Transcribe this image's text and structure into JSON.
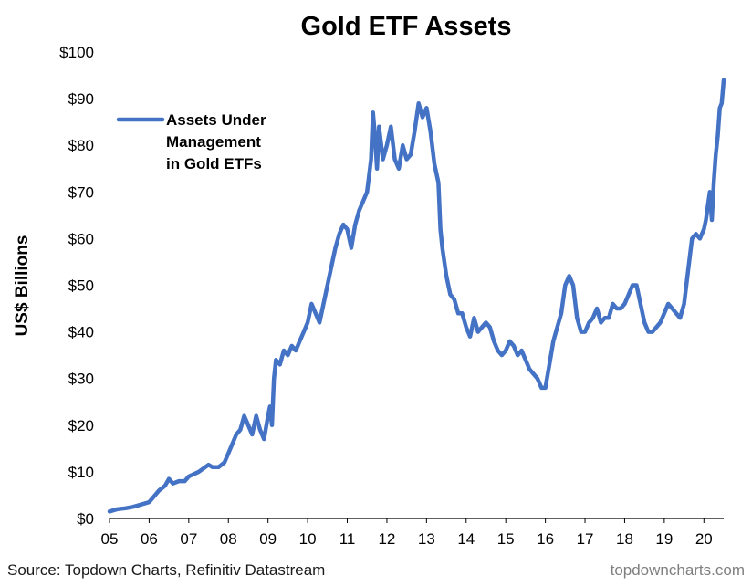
{
  "chart_data": {
    "type": "line",
    "title": "Gold ETF Assets",
    "ylabel": "US$ Billions",
    "xlabel": "",
    "xlim": [
      2005,
      2020.5
    ],
    "ylim": [
      0,
      100
    ],
    "y_ticks": [
      0,
      10,
      20,
      30,
      40,
      50,
      60,
      70,
      80,
      90,
      100
    ],
    "y_tick_labels": [
      "$0",
      "$10",
      "$20",
      "$30",
      "$40",
      "$50",
      "$60",
      "$70",
      "$80",
      "$90",
      "$100"
    ],
    "x_ticks": [
      2005,
      2006,
      2007,
      2008,
      2009,
      2010,
      2011,
      2012,
      2013,
      2014,
      2015,
      2016,
      2017,
      2018,
      2019,
      2020
    ],
    "x_tick_labels": [
      "05",
      "06",
      "07",
      "08",
      "09",
      "10",
      "11",
      "12",
      "13",
      "14",
      "15",
      "16",
      "17",
      "18",
      "19",
      "20"
    ],
    "grid": false,
    "legend_position": "top-left",
    "series": [
      {
        "name": "Assets Under Management in Gold ETFs",
        "color": "#4472C4",
        "x": [
          2005.0,
          2005.2,
          2005.4,
          2005.6,
          2005.8,
          2006.0,
          2006.1,
          2006.25,
          2006.4,
          2006.5,
          2006.6,
          2006.75,
          2006.9,
          2007.0,
          2007.25,
          2007.5,
          2007.6,
          2007.75,
          2007.9,
          2008.0,
          2008.1,
          2008.2,
          2008.3,
          2008.4,
          2008.5,
          2008.6,
          2008.7,
          2008.8,
          2008.9,
          2009.0,
          2009.05,
          2009.1,
          2009.15,
          2009.2,
          2009.3,
          2009.4,
          2009.5,
          2009.6,
          2009.7,
          2009.8,
          2009.9,
          2010.0,
          2010.1,
          2010.2,
          2010.3,
          2010.4,
          2010.5,
          2010.6,
          2010.7,
          2010.8,
          2010.9,
          2011.0,
          2011.1,
          2011.2,
          2011.3,
          2011.4,
          2011.5,
          2011.6,
          2011.65,
          2011.7,
          2011.75,
          2011.8,
          2011.9,
          2012.0,
          2012.1,
          2012.2,
          2012.3,
          2012.4,
          2012.5,
          2012.6,
          2012.7,
          2012.8,
          2012.9,
          2013.0,
          2013.1,
          2013.2,
          2013.3,
          2013.35,
          2013.4,
          2013.5,
          2013.6,
          2013.7,
          2013.8,
          2013.9,
          2014.0,
          2014.1,
          2014.2,
          2014.3,
          2014.4,
          2014.5,
          2014.6,
          2014.7,
          2014.8,
          2014.9,
          2015.0,
          2015.1,
          2015.2,
          2015.3,
          2015.4,
          2015.5,
          2015.6,
          2015.7,
          2015.8,
          2015.9,
          2016.0,
          2016.1,
          2016.2,
          2016.3,
          2016.4,
          2016.5,
          2016.6,
          2016.7,
          2016.8,
          2016.9,
          2017.0,
          2017.1,
          2017.2,
          2017.3,
          2017.4,
          2017.5,
          2017.6,
          2017.7,
          2017.8,
          2017.9,
          2018.0,
          2018.1,
          2018.2,
          2018.3,
          2018.4,
          2018.5,
          2018.6,
          2018.7,
          2018.8,
          2018.9,
          2019.0,
          2019.1,
          2019.2,
          2019.3,
          2019.4,
          2019.5,
          2019.6,
          2019.7,
          2019.8,
          2019.9,
          2020.0,
          2020.05,
          2020.1,
          2020.15,
          2020.2,
          2020.25,
          2020.3,
          2020.35,
          2020.4,
          2020.45,
          2020.5
        ],
        "values": [
          1.5,
          2.0,
          2.2,
          2.5,
          3.0,
          3.5,
          4.5,
          6.0,
          7.0,
          8.5,
          7.5,
          8.0,
          8.0,
          9.0,
          10.0,
          11.5,
          11.0,
          11.0,
          12.0,
          14.0,
          16.0,
          18.0,
          19.0,
          22.0,
          20.0,
          18.0,
          22.0,
          19.0,
          17.0,
          22.0,
          24.0,
          20.0,
          30.0,
          34.0,
          33.0,
          36.0,
          35.0,
          37.0,
          36.0,
          38.0,
          40.0,
          42.0,
          46.0,
          44.0,
          42.0,
          46.0,
          50.0,
          54.0,
          58.0,
          61.0,
          63.0,
          62.0,
          58.0,
          63.0,
          66.0,
          68.0,
          70.0,
          77.0,
          87.0,
          82.0,
          75.0,
          84.0,
          77.0,
          80.0,
          84.0,
          77.0,
          75.0,
          80.0,
          77.0,
          78.0,
          83.0,
          89.0,
          86.0,
          88.0,
          83.0,
          76.0,
          72.0,
          62.0,
          58.0,
          52.0,
          48.0,
          47.0,
          44.0,
          44.0,
          41.0,
          39.0,
          43.0,
          40.0,
          41.0,
          42.0,
          41.0,
          38.0,
          36.0,
          35.0,
          36.0,
          38.0,
          37.0,
          35.0,
          36.0,
          34.0,
          32.0,
          31.0,
          30.0,
          28.0,
          28.0,
          33.0,
          38.0,
          41.0,
          44.0,
          50.0,
          52.0,
          50.0,
          43.0,
          40.0,
          40.0,
          42.0,
          43.0,
          45.0,
          42.0,
          43.0,
          43.0,
          46.0,
          45.0,
          45.0,
          46.0,
          48.0,
          50.0,
          50.0,
          46.0,
          42.0,
          40.0,
          40.0,
          41.0,
          42.0,
          44.0,
          46.0,
          45.0,
          44.0,
          43.0,
          46.0,
          53.0,
          60.0,
          61.0,
          60.0,
          62.0,
          64.0,
          67.0,
          70.0,
          64.0,
          72.0,
          78.0,
          82.0,
          88.0,
          89.0,
          94.0
        ]
      }
    ]
  },
  "annotations": {
    "legend_line1": "Assets Under",
    "legend_line2": "Management",
    "legend_line3": "in Gold ETFs",
    "source": "Source: Topdown Charts, Refinitiv Datastream",
    "brand": "topdowncharts.com"
  }
}
